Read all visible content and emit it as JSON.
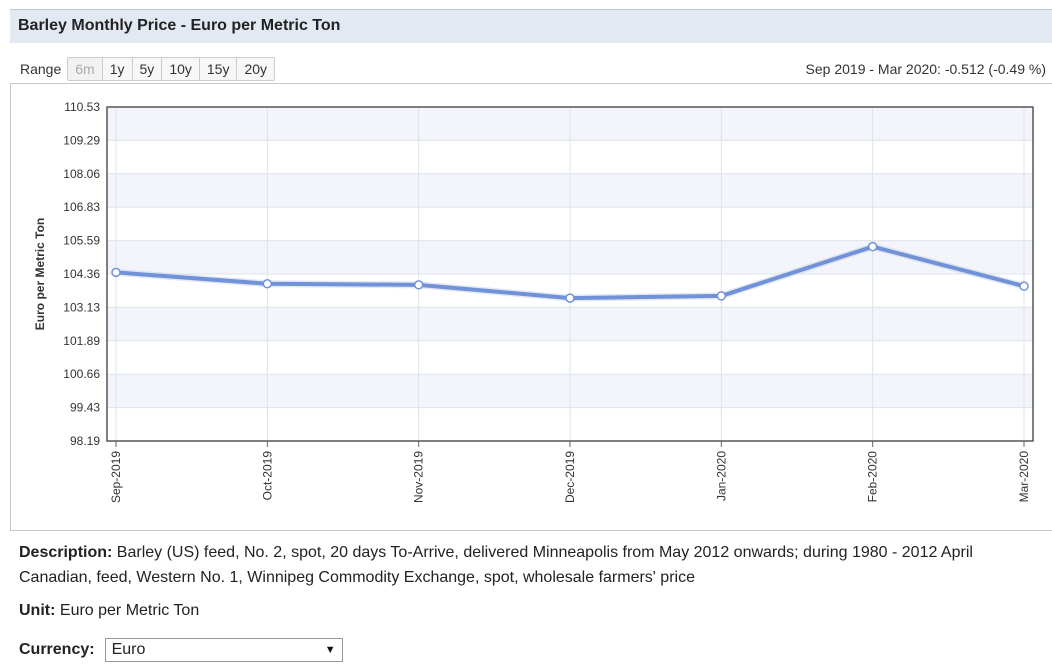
{
  "header": {
    "title": "Barley Monthly Price - Euro per Metric Ton"
  },
  "range": {
    "label": "Range",
    "buttons": [
      "6m",
      "1y",
      "5y",
      "10y",
      "15y",
      "20y"
    ],
    "disabled": "6m"
  },
  "change_text": "Sep 2019 - Mar 2020: -0.512 (-0.49 %)",
  "chart_data": {
    "type": "line",
    "title": "",
    "xlabel": "",
    "ylabel": "Euro per Metric Ton",
    "ylim": [
      98.19,
      110.53
    ],
    "yticks": [
      "110.53",
      "109.29",
      "108.06",
      "106.83",
      "105.59",
      "104.36",
      "103.13",
      "101.89",
      "100.66",
      "99.43",
      "98.19"
    ],
    "categories": [
      "Sep-2019",
      "Oct-2019",
      "Nov-2019",
      "Dec-2019",
      "Jan-2020",
      "Feb-2020",
      "Mar-2020"
    ],
    "series": [
      {
        "values": [
          104.42,
          104.0,
          103.96,
          103.47,
          103.55,
          105.37,
          103.91
        ]
      }
    ],
    "line_color": "#7192d9",
    "grid": true
  },
  "description": {
    "label": "Description:",
    "text": "Barley (US) feed, No. 2, spot, 20 days To-Arrive, delivered Minneapolis from May 2012 onwards; during 1980 - 2012 April Canadian, feed, Western No. 1, Winnipeg Commodity Exchange, spot, wholesale farmers' price"
  },
  "unit": {
    "label": "Unit:",
    "value": "Euro per Metric Ton"
  },
  "currency": {
    "label": "Currency:",
    "selected": "Euro"
  }
}
